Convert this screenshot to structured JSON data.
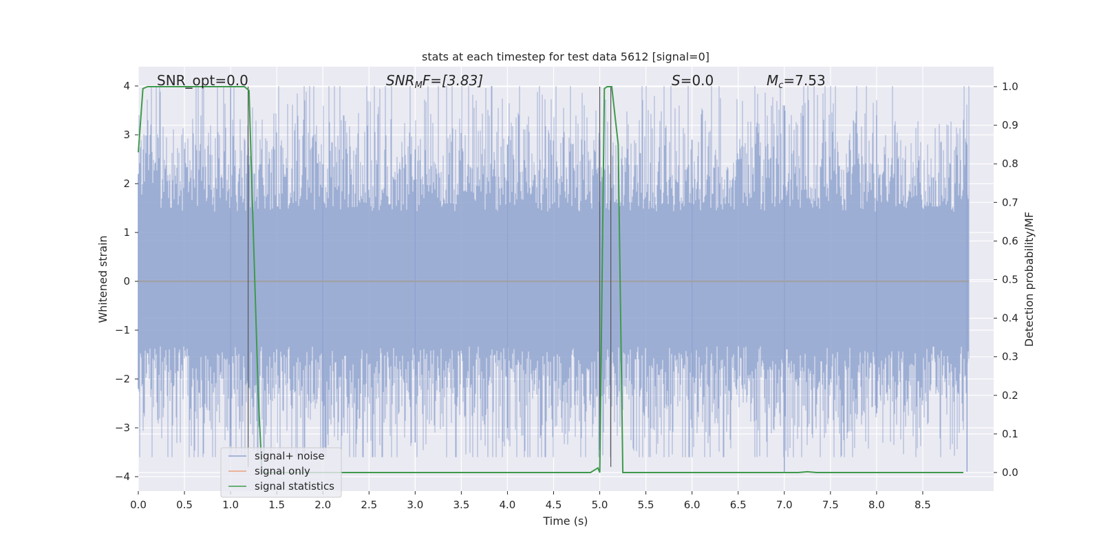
{
  "chart_data": {
    "type": "line",
    "title": "stats at each timestep for test data 5612 [signal=0]",
    "xlabel": "Time (s)",
    "ylabel": "Whitened strain",
    "ylabel_right": "Detection probability/MF",
    "xlim": [
      0.0,
      9.0
    ],
    "ylim": [
      -4.3,
      4.4
    ],
    "ylim_right": [
      -0.045,
      1.045
    ],
    "xticks": [
      "0.0",
      "0.5",
      "1.0",
      "1.5",
      "2.0",
      "2.5",
      "3.0",
      "3.5",
      "4.0",
      "4.5",
      "5.0",
      "5.5",
      "6.0",
      "6.5",
      "7.0",
      "7.5",
      "8.0",
      "8.5"
    ],
    "yticks": [
      "4",
      "3",
      "2",
      "1",
      "0",
      "−1",
      "−2",
      "−3",
      "−4"
    ],
    "yticks_right": [
      "1.0",
      "0.9",
      "0.8",
      "0.7",
      "0.6",
      "0.5",
      "0.4",
      "0.3",
      "0.2",
      "0.1",
      "0.0"
    ],
    "grid": true,
    "legend_position": "lower-left",
    "annotations": {
      "snr_opt": "SNR_opt=0.0",
      "snr_mf_sym": "SNR",
      "snr_mf_sub": "M",
      "snr_mf_rest": "F=[3.83]",
      "s_sym": "S",
      "s_rest": "=0.0",
      "mc_sym": "M",
      "mc_sub": "c",
      "mc_rest": "=7.53"
    },
    "noise_envelope": {
      "typical_amplitude": 1.9,
      "peak_max": 4.0,
      "peak_min": -3.9,
      "description_samples": "dense whitened noise, many samples"
    },
    "series": [
      {
        "name": "signal+ noise",
        "color": "#8fa3cf",
        "x": [
          0.0,
          1.0,
          2.0,
          3.0,
          4.0,
          5.0,
          6.0,
          7.0,
          8.0,
          9.0
        ],
        "y_upper": [
          2.2,
          4.0,
          2.4,
          2.7,
          2.8,
          2.9,
          2.9,
          3.6,
          3.4,
          2.8
        ],
        "y_lower": [
          -2.2,
          -3.0,
          -3.5,
          -3.3,
          -3.0,
          -2.4,
          -3.0,
          -3.9,
          -2.7,
          -3.9
        ]
      },
      {
        "name": "signal only",
        "color": "#e8a07c",
        "x": [
          0.0,
          9.0
        ],
        "y": [
          0.0,
          0.0
        ]
      },
      {
        "name": "signal statistics",
        "color": "#3d9a4a",
        "axis": "right",
        "x": [
          0.0,
          0.05,
          0.1,
          0.2,
          0.5,
          1.0,
          1.15,
          1.2,
          1.3,
          1.34,
          1.5,
          2.0,
          3.0,
          4.0,
          4.9,
          4.98,
          5.0,
          5.05,
          5.08,
          5.13,
          5.2,
          5.25,
          5.3,
          6.0,
          7.0,
          7.15,
          7.25,
          7.35,
          8.0,
          9.0
        ],
        "y": [
          0.83,
          0.995,
          1.0,
          1.0,
          1.0,
          1.0,
          1.0,
          0.99,
          0.2,
          0.0,
          0.0,
          0.0,
          0.0,
          0.0,
          0.0,
          0.012,
          0.0,
          0.995,
          1.0,
          1.0,
          0.85,
          0.0,
          0.0,
          0.0,
          0.0,
          0.0,
          0.002,
          0.0,
          0.0,
          0.0
        ]
      }
    ],
    "vertical_markers_x": [
      1.19,
      5.0,
      5.12
    ],
    "legend": {
      "entries": [
        "signal+ noise",
        "signal only",
        "signal statistics"
      ]
    }
  }
}
